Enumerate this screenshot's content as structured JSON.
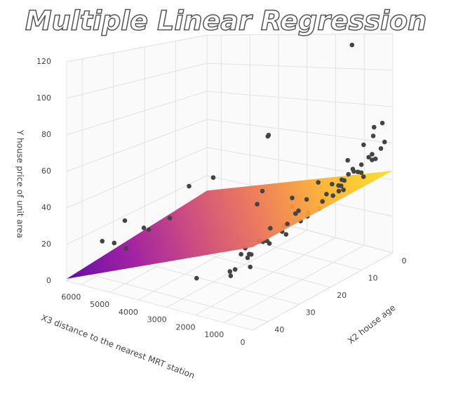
{
  "chart_data": {
    "type": "scatter3d",
    "title": "Multiple Linear Regression",
    "xaxis_title": "X2 house age",
    "yaxis_title": "X3 distance to the nearest MRT station",
    "zaxis_title": "Y house price of unit area",
    "xlim": [
      0,
      45
    ],
    "xticks": [
      0,
      10,
      20,
      30,
      40
    ],
    "ylim": [
      0,
      6500
    ],
    "yticks": [
      0,
      1000,
      2000,
      3000,
      4000,
      5000,
      6000
    ],
    "zlim": [
      0,
      120
    ],
    "zticks": [
      0,
      20,
      40,
      60,
      80,
      100,
      120
    ],
    "grid": true,
    "points": {
      "color": "#444444",
      "x": [
        10.8,
        5,
        3,
        8,
        2,
        1,
        6,
        12,
        4,
        7,
        3,
        2,
        9,
        14,
        16,
        18,
        13,
        11,
        6,
        20,
        25,
        30,
        33,
        35,
        38,
        40,
        28,
        22,
        17,
        24,
        31,
        36,
        27,
        34,
        39,
        42,
        19,
        15,
        10,
        13,
        21,
        26,
        32,
        37,
        41,
        29,
        23,
        12,
        35,
        40,
        16,
        8,
        5,
        18,
        33,
        37,
        34,
        38,
        30,
        40,
        36,
        20,
        25,
        14,
        9,
        4,
        1,
        7,
        43,
        44,
        30,
        26,
        21,
        3,
        11
      ],
      "y": [
        252,
        300,
        400,
        350,
        200,
        180,
        450,
        500,
        290,
        260,
        330,
        150,
        420,
        600,
        350,
        500,
        280,
        700,
        900,
        400,
        500,
        600,
        800,
        500,
        400,
        300,
        350,
        900,
        1100,
        1200,
        1300,
        1100,
        1500,
        1600,
        700,
        500,
        250,
        150,
        800,
        1000,
        700,
        900,
        200,
        250,
        1200,
        2000,
        1800,
        2200,
        1700,
        2500,
        3000,
        3500,
        3800,
        2600,
        4200,
        4500,
        5000,
        5600,
        6100,
        5800,
        5400,
        4100,
        4400,
        200,
        120,
        250,
        500,
        600,
        300,
        900,
        250,
        180,
        320,
        700,
        380
      ],
      "z": [
        117.5,
        55,
        52,
        49,
        58,
        61,
        47,
        44,
        56,
        63,
        70,
        72,
        51,
        46,
        42,
        40,
        48,
        43,
        45,
        38,
        35,
        33,
        30,
        31,
        34,
        36,
        41,
        37,
        32,
        30,
        27,
        25,
        24,
        22,
        28,
        29,
        45,
        50,
        39,
        36,
        34,
        28,
        39,
        40,
        18,
        20,
        26,
        28,
        15,
        12,
        30,
        62,
        60,
        40,
        32,
        28,
        25,
        18,
        22,
        20,
        14,
        45,
        43,
        44,
        54,
        66,
        51,
        48,
        26,
        23,
        50,
        47,
        52,
        42,
        57
      ]
    },
    "surface": {
      "x": [
        0,
        45
      ],
      "y": [
        0,
        6500
      ],
      "z": [
        [
          45,
          9.3
        ],
        [
          36.9,
          1.2
        ]
      ],
      "colors": [
        "#5c01a6",
        "#9c179e",
        "#cc4778",
        "#ed7953",
        "#fdb42f",
        "#f7e225"
      ]
    }
  }
}
